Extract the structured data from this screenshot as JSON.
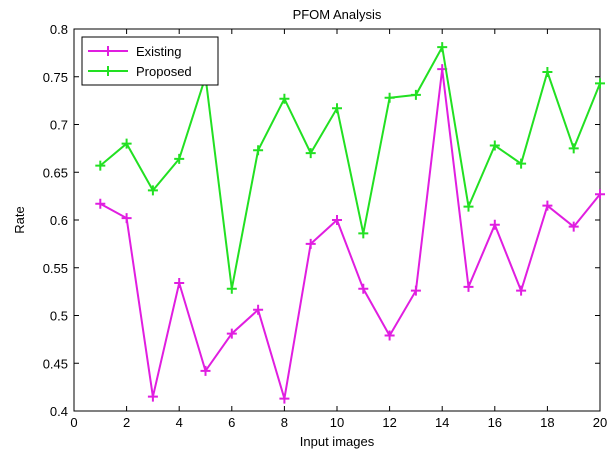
{
  "chart_data": {
    "type": "line",
    "title": "PFOM Analysis",
    "xlabel": "Input images",
    "ylabel": "Rate",
    "xlim": [
      0,
      20
    ],
    "ylim": [
      0.4,
      0.8
    ],
    "xticks": [
      0,
      2,
      4,
      6,
      8,
      10,
      12,
      14,
      16,
      18,
      20
    ],
    "yticks": [
      0.4,
      0.45,
      0.5,
      0.55,
      0.6,
      0.65,
      0.7,
      0.75,
      0.8
    ],
    "x": [
      1,
      2,
      3,
      4,
      5,
      6,
      7,
      8,
      9,
      10,
      11,
      12,
      13,
      14,
      15,
      16,
      17,
      18,
      19,
      20
    ],
    "series": [
      {
        "name": "Existing",
        "color": "#e01ee0",
        "marker": "plus",
        "values": [
          0.617,
          0.602,
          0.415,
          0.534,
          0.442,
          0.481,
          0.506,
          0.413,
          0.575,
          0.6,
          0.528,
          0.479,
          0.526,
          0.758,
          0.53,
          0.595,
          0.526,
          0.615,
          0.593,
          0.627
        ]
      },
      {
        "name": "Proposed",
        "color": "#22e022",
        "marker": "plus",
        "values": [
          0.657,
          0.68,
          0.631,
          0.664,
          0.75,
          0.528,
          0.673,
          0.727,
          0.67,
          0.717,
          0.586,
          0.728,
          0.731,
          0.781,
          0.614,
          0.678,
          0.659,
          0.755,
          0.675,
          0.743
        ]
      }
    ],
    "grid": false,
    "legend_position": "top-left"
  }
}
